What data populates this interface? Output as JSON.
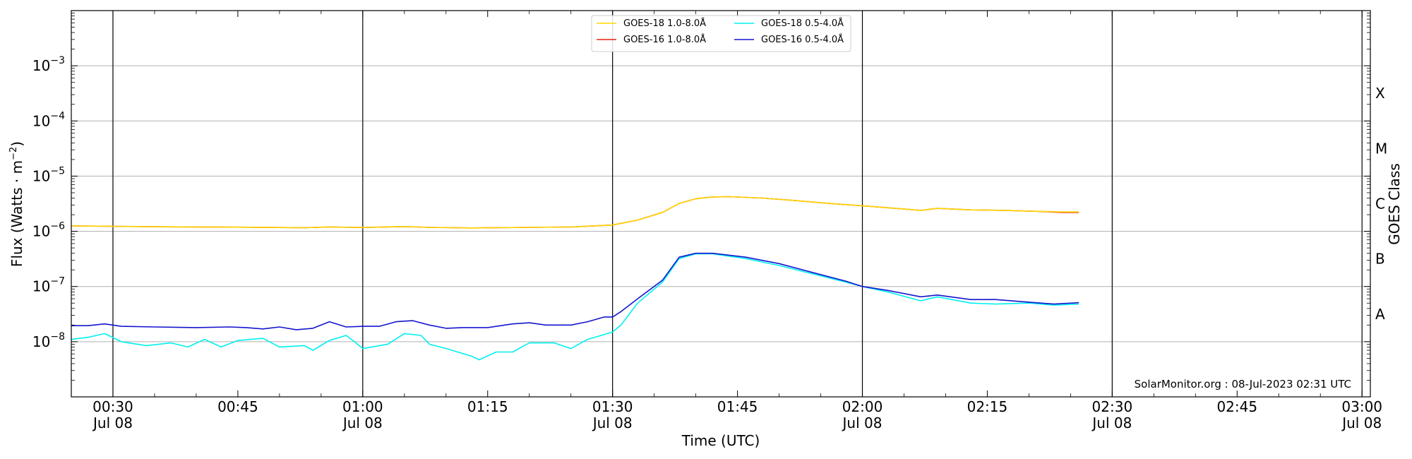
{
  "chart_data": {
    "type": "line",
    "xlabel": "Time (UTC)",
    "ylabel_parts": [
      "Flux (Watts · m",
      "−2",
      ")"
    ],
    "right_label": "GOES Class",
    "credit": "SolarMonitor.org : 08-Jul-2023 02:31 UTC",
    "x_range": [
      "00:25",
      "03:01"
    ],
    "y_scale": "log",
    "y_range": [
      1e-09,
      0.01
    ],
    "grid": "horizontal",
    "legend_position": "top-center",
    "x_ticks": [
      {
        "time": "00:30",
        "line1": "00:30",
        "line2": "Jul 08"
      },
      {
        "time": "00:45",
        "line1": "00:45",
        "line2": ""
      },
      {
        "time": "01:00",
        "line1": "01:00",
        "line2": "Jul 08"
      },
      {
        "time": "01:15",
        "line1": "01:15",
        "line2": ""
      },
      {
        "time": "01:30",
        "line1": "01:30",
        "line2": "Jul 08"
      },
      {
        "time": "01:45",
        "line1": "01:45",
        "line2": ""
      },
      {
        "time": "02:00",
        "line1": "02:00",
        "line2": "Jul 08"
      },
      {
        "time": "02:15",
        "line1": "02:15",
        "line2": ""
      },
      {
        "time": "02:30",
        "line1": "02:30",
        "line2": "Jul 08"
      },
      {
        "time": "02:45",
        "line1": "02:45",
        "line2": ""
      },
      {
        "time": "03:00",
        "line1": "03:00",
        "line2": "Jul 08"
      }
    ],
    "vertical_lines": [
      "00:30",
      "01:00",
      "01:30",
      "02:00",
      "02:30",
      "03:00"
    ],
    "y_ticks": [
      {
        "exp": "-8",
        "value": 1e-08
      },
      {
        "exp": "-7",
        "value": 1e-07
      },
      {
        "exp": "-6",
        "value": 1e-06
      },
      {
        "exp": "-5",
        "value": 1e-05
      },
      {
        "exp": "-4",
        "value": 0.0001
      },
      {
        "exp": "-3",
        "value": 0.001
      }
    ],
    "goes_classes": [
      {
        "label": "A",
        "value": 3.16e-08
      },
      {
        "label": "B",
        "value": 3.16e-07
      },
      {
        "label": "C",
        "value": 3.16e-06
      },
      {
        "label": "M",
        "value": 3.16e-05
      },
      {
        "label": "X",
        "value": 0.000316
      }
    ],
    "series": [
      {
        "name": "GOES-18 1.0-8.0Å",
        "color": "#ffd700",
        "points": [
          [
            "00:25",
            1.25e-06
          ],
          [
            "00:30",
            1.23e-06
          ],
          [
            "00:35",
            1.21e-06
          ],
          [
            "00:40",
            1.2e-06
          ],
          [
            "00:45",
            1.19e-06
          ],
          [
            "00:50",
            1.17e-06
          ],
          [
            "00:53",
            1.16e-06
          ],
          [
            "00:56",
            1.2e-06
          ],
          [
            "01:00",
            1.17e-06
          ],
          [
            "01:05",
            1.22e-06
          ],
          [
            "01:08",
            1.18e-06
          ],
          [
            "01:13",
            1.15e-06
          ],
          [
            "01:20",
            1.18e-06
          ],
          [
            "01:25",
            1.2e-06
          ],
          [
            "01:30",
            1.3e-06
          ],
          [
            "01:33",
            1.6e-06
          ],
          [
            "01:36",
            2.2e-06
          ],
          [
            "01:38",
            3.2e-06
          ],
          [
            "01:40",
            3.9e-06
          ],
          [
            "01:42",
            4.2e-06
          ],
          [
            "01:44",
            4.25e-06
          ],
          [
            "01:48",
            4e-06
          ],
          [
            "01:52",
            3.6e-06
          ],
          [
            "01:56",
            3.2e-06
          ],
          [
            "02:00",
            2.9e-06
          ],
          [
            "02:04",
            2.6e-06
          ],
          [
            "02:07",
            2.4e-06
          ],
          [
            "02:09",
            2.6e-06
          ],
          [
            "02:13",
            2.45e-06
          ],
          [
            "02:17",
            2.4e-06
          ],
          [
            "02:21",
            2.3e-06
          ],
          [
            "02:24",
            2.25e-06
          ],
          [
            "02:26",
            2.25e-06
          ]
        ]
      },
      {
        "name": "GOES-16 1.0-8.0Å",
        "color": "#e8200c",
        "points": [
          [
            "00:25",
            1.25e-06
          ],
          [
            "00:30",
            1.23e-06
          ],
          [
            "00:35",
            1.21e-06
          ],
          [
            "00:40",
            1.2e-06
          ],
          [
            "00:45",
            1.19e-06
          ],
          [
            "00:50",
            1.17e-06
          ],
          [
            "00:53",
            1.16e-06
          ],
          [
            "00:56",
            1.2e-06
          ],
          [
            "01:00",
            1.17e-06
          ],
          [
            "01:05",
            1.22e-06
          ],
          [
            "01:08",
            1.18e-06
          ],
          [
            "01:13",
            1.15e-06
          ],
          [
            "01:20",
            1.18e-06
          ],
          [
            "01:25",
            1.2e-06
          ],
          [
            "01:30",
            1.3e-06
          ],
          [
            "01:33",
            1.6e-06
          ],
          [
            "01:36",
            2.2e-06
          ],
          [
            "01:38",
            3.2e-06
          ],
          [
            "01:40",
            3.9e-06
          ],
          [
            "01:42",
            4.2e-06
          ],
          [
            "01:44",
            4.25e-06
          ],
          [
            "01:48",
            4e-06
          ],
          [
            "01:52",
            3.6e-06
          ],
          [
            "01:56",
            3.2e-06
          ],
          [
            "02:00",
            2.9e-06
          ],
          [
            "02:04",
            2.6e-06
          ],
          [
            "02:07",
            2.4e-06
          ],
          [
            "02:09",
            2.6e-06
          ],
          [
            "02:13",
            2.45e-06
          ],
          [
            "02:17",
            2.4e-06
          ],
          [
            "02:21",
            2.3e-06
          ],
          [
            "02:24",
            2.2e-06
          ],
          [
            "02:26",
            2.2e-06
          ]
        ]
      },
      {
        "name": "GOES-18 0.5-4.0Å",
        "color": "#00f0f0",
        "points": [
          [
            "00:25",
            1.1e-08
          ],
          [
            "00:27",
            1.2e-08
          ],
          [
            "00:29",
            1.4e-08
          ],
          [
            "00:31",
            1e-08
          ],
          [
            "00:34",
            8.5e-09
          ],
          [
            "00:37",
            9.5e-09
          ],
          [
            "00:39",
            8e-09
          ],
          [
            "00:41",
            1.1e-08
          ],
          [
            "00:43",
            8e-09
          ],
          [
            "00:45",
            1.05e-08
          ],
          [
            "00:48",
            1.15e-08
          ],
          [
            "00:50",
            8e-09
          ],
          [
            "00:53",
            8.5e-09
          ],
          [
            "00:54",
            7e-09
          ],
          [
            "00:56",
            1.05e-08
          ],
          [
            "00:58",
            1.3e-08
          ],
          [
            "00:59",
            1e-08
          ],
          [
            "01:00",
            7.5e-09
          ],
          [
            "01:03",
            9e-09
          ],
          [
            "01:05",
            1.4e-08
          ],
          [
            "01:07",
            1.3e-08
          ],
          [
            "01:08",
            9e-09
          ],
          [
            "01:10",
            7.5e-09
          ],
          [
            "01:13",
            5.5e-09
          ],
          [
            "01:14",
            4.7e-09
          ],
          [
            "01:16",
            6.5e-09
          ],
          [
            "01:18",
            6.5e-09
          ],
          [
            "01:20",
            9.5e-09
          ],
          [
            "01:23",
            9.5e-09
          ],
          [
            "01:25",
            7.5e-09
          ],
          [
            "01:27",
            1.1e-08
          ],
          [
            "01:30",
            1.5e-08
          ],
          [
            "01:31",
            2e-08
          ],
          [
            "01:33",
            5e-08
          ],
          [
            "01:36",
            1.2e-07
          ],
          [
            "01:38",
            3.2e-07
          ],
          [
            "01:40",
            3.9e-07
          ],
          [
            "01:42",
            3.9e-07
          ],
          [
            "01:46",
            3.2e-07
          ],
          [
            "01:50",
            2.4e-07
          ],
          [
            "01:54",
            1.7e-07
          ],
          [
            "01:58",
            1.2e-07
          ],
          [
            "02:00",
            1e-07
          ],
          [
            "02:03",
            8e-08
          ],
          [
            "02:07",
            5.5e-08
          ],
          [
            "02:09",
            6.5e-08
          ],
          [
            "02:13",
            5e-08
          ],
          [
            "02:16",
            4.8e-08
          ],
          [
            "02:20",
            5e-08
          ],
          [
            "02:23",
            4.6e-08
          ],
          [
            "02:26",
            4.8e-08
          ]
        ]
      },
      {
        "name": "GOES-16 0.5-4.0Å",
        "color": "#1515d0",
        "points": [
          [
            "00:25",
            1.95e-08
          ],
          [
            "00:27",
            1.95e-08
          ],
          [
            "00:29",
            2.1e-08
          ],
          [
            "00:31",
            1.9e-08
          ],
          [
            "00:35",
            1.85e-08
          ],
          [
            "00:40",
            1.8e-08
          ],
          [
            "00:44",
            1.85e-08
          ],
          [
            "00:46",
            1.8e-08
          ],
          [
            "00:48",
            1.7e-08
          ],
          [
            "00:50",
            1.85e-08
          ],
          [
            "00:52",
            1.65e-08
          ],
          [
            "00:54",
            1.75e-08
          ],
          [
            "00:56",
            2.3e-08
          ],
          [
            "00:58",
            1.85e-08
          ],
          [
            "01:00",
            1.9e-08
          ],
          [
            "01:02",
            1.9e-08
          ],
          [
            "01:04",
            2.3e-08
          ],
          [
            "01:06",
            2.4e-08
          ],
          [
            "01:08",
            2e-08
          ],
          [
            "01:10",
            1.75e-08
          ],
          [
            "01:12",
            1.8e-08
          ],
          [
            "01:15",
            1.8e-08
          ],
          [
            "01:18",
            2.1e-08
          ],
          [
            "01:20",
            2.2e-08
          ],
          [
            "01:22",
            2e-08
          ],
          [
            "01:25",
            2e-08
          ],
          [
            "01:27",
            2.3e-08
          ],
          [
            "01:29",
            2.8e-08
          ],
          [
            "01:30",
            2.8e-08
          ],
          [
            "01:31",
            3.5e-08
          ],
          [
            "01:33",
            6e-08
          ],
          [
            "01:36",
            1.3e-07
          ],
          [
            "01:38",
            3.4e-07
          ],
          [
            "01:40",
            4e-07
          ],
          [
            "01:42",
            4e-07
          ],
          [
            "01:46",
            3.4e-07
          ],
          [
            "01:50",
            2.6e-07
          ],
          [
            "01:54",
            1.8e-07
          ],
          [
            "01:58",
            1.25e-07
          ],
          [
            "02:00",
            1e-07
          ],
          [
            "02:03",
            8.5e-08
          ],
          [
            "02:07",
            6.5e-08
          ],
          [
            "02:09",
            7e-08
          ],
          [
            "02:13",
            5.8e-08
          ],
          [
            "02:16",
            5.8e-08
          ],
          [
            "02:20",
            5.2e-08
          ],
          [
            "02:23",
            4.8e-08
          ],
          [
            "02:26",
            5.1e-08
          ]
        ]
      }
    ]
  }
}
